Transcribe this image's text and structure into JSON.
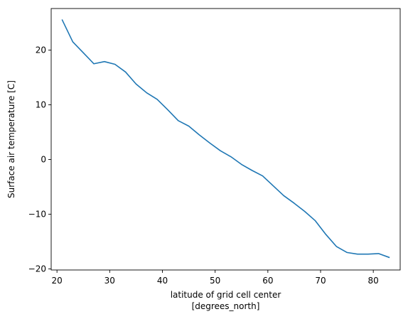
{
  "chart_data": {
    "type": "line",
    "title": "",
    "xlabel": "latitude of grid cell center",
    "xlabel_units": "[degrees_north]",
    "ylabel": "Surface air temperature [C]",
    "xlim": [
      18.9,
      85.1
    ],
    "ylim": [
      -20.2,
      27.6
    ],
    "xticks": [
      20,
      30,
      40,
      50,
      60,
      70,
      80
    ],
    "yticks": [
      -20,
      -10,
      0,
      10,
      20
    ],
    "grid": false,
    "line_color": "#1f77b4",
    "series": [
      {
        "x": [
          21,
          23,
          25,
          27,
          29,
          31,
          33,
          35,
          37,
          39,
          41,
          43,
          45,
          47,
          49,
          51,
          53,
          55,
          57,
          59,
          61,
          63,
          65,
          67,
          69,
          71,
          73,
          75,
          77,
          79,
          81,
          83
        ],
        "y": [
          25.5,
          21.5,
          19.5,
          17.5,
          17.9,
          17.4,
          16.0,
          13.8,
          12.2,
          11.0,
          9.1,
          7.1,
          6.1,
          4.5,
          3.0,
          1.6,
          0.5,
          -0.9,
          -2.0,
          -3.0,
          -4.8,
          -6.6,
          -8.0,
          -9.5,
          -11.2,
          -13.7,
          -15.9,
          -17.0,
          -17.3,
          -17.3,
          -17.2,
          -17.9
        ]
      }
    ]
  }
}
